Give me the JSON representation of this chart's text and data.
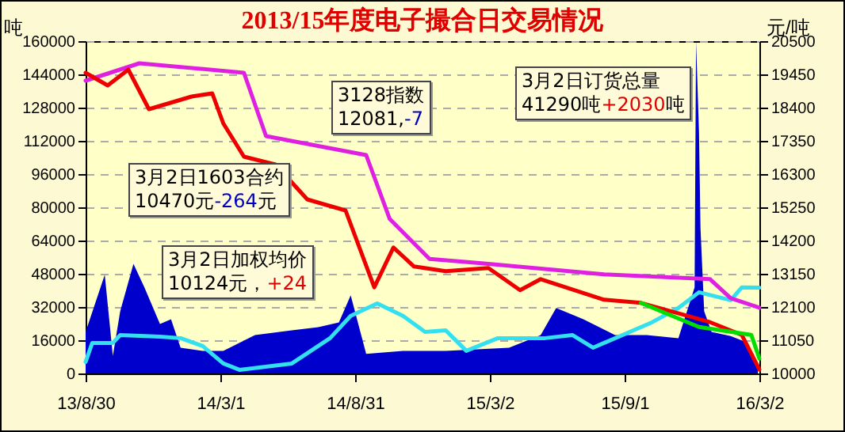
{
  "chart_data": {
    "type": "line",
    "title": "2013/15年度电子撮合日交易情况",
    "ylabel": "吨",
    "y2label": "元/吨",
    "annotations": [
      "3128指数\n12081,-7",
      "3月2日订货总量\n41290吨+2030吨",
      "3月2日1603合约\n10470元-264元",
      "3月2日加权均价\n10124元，+24"
    ],
    "xlim": [
      "2013-08-30",
      "2016-03-02"
    ],
    "xticks": [
      {
        "value": "2013-08-30",
        "label": "13/8/30"
      },
      {
        "value": "2014-03-01",
        "label": "14/3/1"
      },
      {
        "value": "2014-08-31",
        "label": "14/8/31"
      },
      {
        "value": "2015-03-02",
        "label": "15/3/2"
      },
      {
        "value": "2015-09-01",
        "label": "15/9/1"
      },
      {
        "value": "2016-03-02",
        "label": "16/3/2"
      }
    ],
    "ylim": [
      0,
      160000
    ],
    "yticks": [
      0,
      16000,
      32000,
      48000,
      64000,
      80000,
      96000,
      112000,
      128000,
      144000,
      160000
    ],
    "y2lim": [
      10000,
      20500
    ],
    "y2ticks": [
      10000,
      11050,
      12100,
      13150,
      14200,
      15250,
      16300,
      17350,
      18400,
      19450,
      20500
    ],
    "grid": "y",
    "series": [
      {
        "type": "area",
        "color": "#0000cc",
        "x": [
          "2013-08-30",
          "2013-09-25",
          "2013-10-06",
          "2013-10-16",
          "2013-11-03",
          "2013-11-18",
          "2013-12-09",
          "2013-12-24",
          "2014-01-06",
          "2014-02-05",
          "2014-03-05",
          "2014-04-17",
          "2014-06-06",
          "2014-07-12",
          "2014-08-09",
          "2014-08-25",
          "2014-09-15",
          "2014-11-04",
          "2015-01-01",
          "2015-03-28",
          "2015-05-10",
          "2015-05-31",
          "2015-07-07",
          "2015-08-19",
          "2015-10-01",
          "2015-11-13",
          "2015-12-05",
          "2015-12-07",
          "2015-12-11",
          "2015-12-13",
          "2015-12-18",
          "2015-12-28",
          "2016-01-23",
          "2016-02-14",
          "2016-02-29"
        ],
        "values": [
          20000,
          47500,
          8500,
          30000,
          52800,
          41300,
          23800,
          26100,
          12400,
          10900,
          10900,
          18500,
          20800,
          22300,
          24600,
          37600,
          9400,
          10900,
          10900,
          12400,
          18500,
          31500,
          26100,
          18500,
          18500,
          17000,
          41400,
          160000,
          116000,
          70000,
          30000,
          20000,
          18000,
          15000,
          3000
        ]
      },
      {
        "color": "#33e0f0",
        "x": [
          "2013-08-30",
          "2013-09-08",
          "2013-10-06",
          "2013-10-16",
          "2013-12-09",
          "2014-01-06",
          "2014-02-05",
          "2014-03-05",
          "2014-03-27",
          "2014-06-06",
          "2014-07-28",
          "2014-08-25",
          "2014-09-30",
          "2014-11-04",
          "2014-12-04",
          "2015-01-01",
          "2015-01-29",
          "2015-03-13",
          "2015-05-16",
          "2015-06-22",
          "2015-07-20",
          "2015-10-08",
          "2015-11-13",
          "2015-12-11",
          "2016-01-23",
          "2016-02-07",
          "2016-03-02"
        ],
        "values": [
          5560,
          14700,
          14700,
          18500,
          17750,
          17000,
          13200,
          4800,
          1750,
          4800,
          17000,
          27700,
          33700,
          27700,
          20000,
          20800,
          10900,
          17000,
          17000,
          18500,
          12400,
          24600,
          31500,
          39100,
          35300,
          41400,
          41290
        ]
      },
      {
        "axis": "y2",
        "color": "#e020e0",
        "x": [
          "2013-08-30",
          "2013-11-11",
          "2014-04-02",
          "2014-05-02",
          "2014-09-15",
          "2014-10-17",
          "2014-12-10",
          "2015-02-19",
          "2015-08-04",
          "2015-12-26",
          "2016-01-23",
          "2016-03-02"
        ],
        "values": [
          19250,
          19800,
          19500,
          17500,
          16900,
          14880,
          13620,
          13480,
          13130,
          12980,
          12380,
          12081
        ]
      },
      {
        "axis": "y2",
        "color": "#ee0000",
        "x": [
          "2013-08-30",
          "2013-09-29",
          "2013-10-27",
          "2013-11-24",
          "2014-01-21",
          "2014-02-18",
          "2014-03-05",
          "2014-04-02",
          "2014-05-15",
          "2014-06-27",
          "2014-08-18",
          "2014-09-26",
          "2014-10-22",
          "2014-11-19",
          "2015-01-01",
          "2015-02-28",
          "2015-04-12",
          "2015-05-10",
          "2015-08-04",
          "2015-09-23",
          "2015-12-26",
          "2016-02-07",
          "2016-03-02"
        ],
        "values": [
          19500,
          19100,
          19600,
          18350,
          18750,
          18850,
          17900,
          16850,
          16600,
          15500,
          15150,
          12720,
          13980,
          13380,
          13230,
          13330,
          12630,
          12980,
          12330,
          12230,
          11620,
          11220,
          10124
        ]
      },
      {
        "axis": "y2",
        "color": "#00dd00",
        "x": [
          "2015-09-23",
          "2015-10-29",
          "2015-12-11",
          "2016-02-20",
          "2016-03-02"
        ],
        "values": [
          12230,
          11880,
          11470,
          11220,
          10470
        ]
      }
    ]
  }
}
